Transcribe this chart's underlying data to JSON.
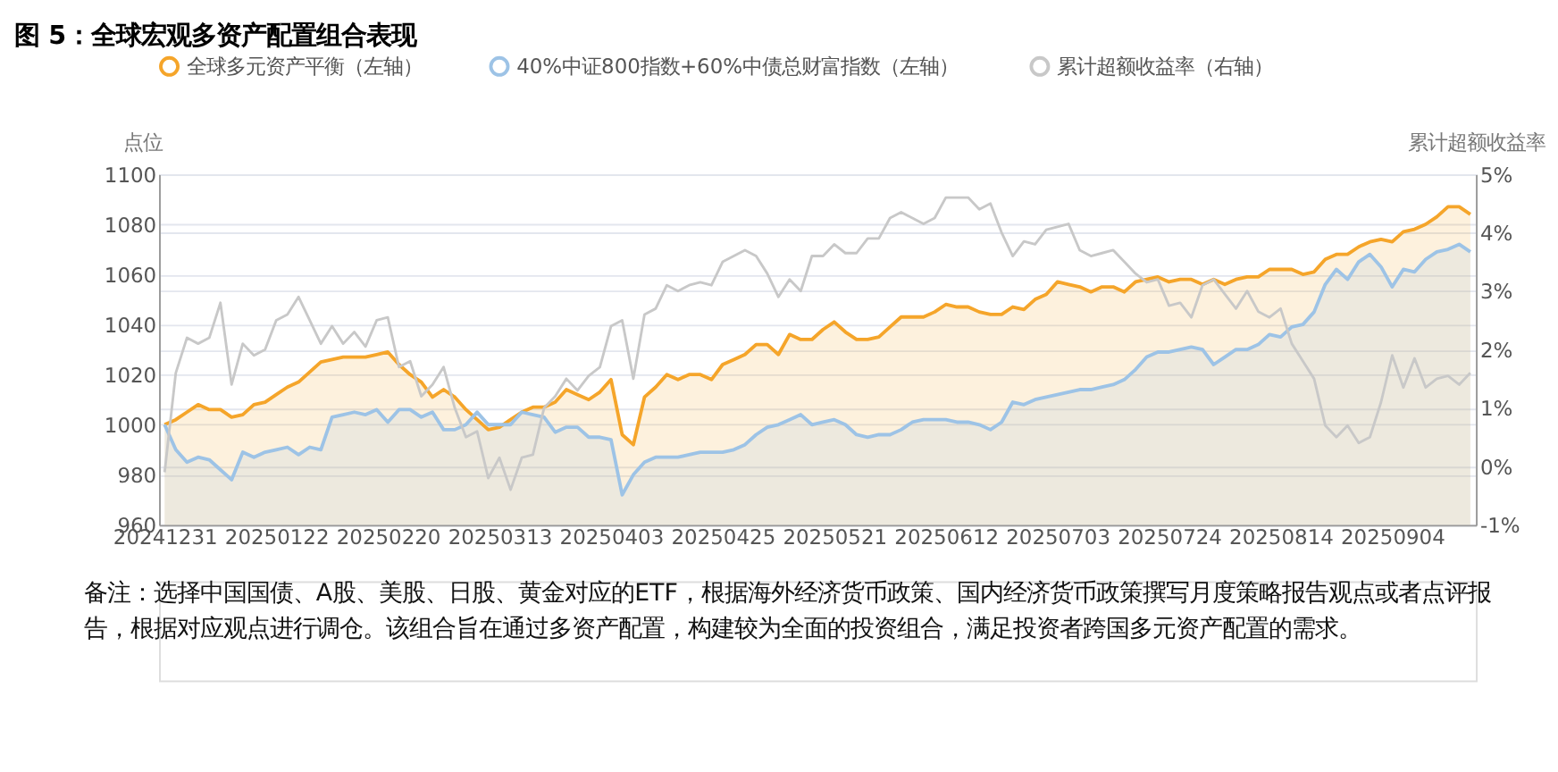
{
  "chart_data": {
    "type": "area",
    "title": "图 5：全球宏观多资产配置组合表现",
    "ylabel": "点位",
    "y2label": "累计超额收益率",
    "categories": [
      "20241231",
      null,
      null,
      null,
      null,
      null,
      null,
      null,
      null,
      null,
      "20250122",
      null,
      null,
      null,
      null,
      null,
      null,
      null,
      null,
      null,
      "20250220",
      null,
      null,
      null,
      null,
      null,
      null,
      null,
      null,
      null,
      "20250313",
      null,
      null,
      null,
      null,
      null,
      null,
      null,
      null,
      null,
      "20250403",
      null,
      null,
      null,
      null,
      null,
      null,
      null,
      null,
      null,
      "20250425",
      null,
      null,
      null,
      null,
      null,
      null,
      null,
      null,
      null,
      "20250521",
      null,
      null,
      null,
      null,
      null,
      null,
      null,
      null,
      null,
      "20250612",
      null,
      null,
      null,
      null,
      null,
      null,
      null,
      null,
      null,
      "20250703",
      null,
      null,
      null,
      null,
      null,
      null,
      null,
      null,
      null,
      "20250724",
      null,
      null,
      null,
      null,
      null,
      null,
      null,
      null,
      null,
      "20250814",
      null,
      null,
      null,
      null,
      null,
      null,
      null,
      null,
      null,
      "20250904",
      null,
      null,
      null,
      null,
      null,
      null,
      null
    ],
    "series": [
      {
        "name": "全球多元资产平衡（左轴）",
        "color": "#f5a52a",
        "values": [
          1000,
          1002,
          1005,
          1008,
          1006,
          1006,
          1003,
          1004,
          1008,
          1009,
          1012,
          1015,
          1017,
          1021,
          1025,
          1026,
          1027,
          1027,
          1027,
          1028,
          1029,
          1024,
          1020,
          1017,
          1011,
          1014,
          1011,
          1006,
          1002,
          998,
          999,
          1002,
          1005,
          1007,
          1007,
          1009,
          1014,
          1012,
          1010,
          1013,
          1018,
          996,
          992,
          1011,
          1015,
          1020,
          1018,
          1020,
          1020,
          1018,
          1024,
          1026,
          1028,
          1032,
          1032,
          1028,
          1036,
          1034,
          1034,
          1038,
          1041,
          1037,
          1034,
          1034,
          1035,
          1039,
          1043,
          1043,
          1043,
          1045,
          1048,
          1047,
          1047,
          1045,
          1044,
          1044,
          1047,
          1046,
          1050,
          1052,
          1057,
          1056,
          1055,
          1053,
          1055,
          1055,
          1053,
          1057,
          1058,
          1059,
          1057,
          1058,
          1058,
          1056,
          1058,
          1056,
          1058,
          1059,
          1059,
          1062,
          1062,
          1062,
          1060,
          1061,
          1066,
          1068,
          1068,
          1071,
          1073,
          1074,
          1073,
          1077,
          1078,
          1080,
          1083,
          1087,
          1087,
          1084
        ]
      },
      {
        "name": "40%中证800指数+60%中债总财富指数（左轴）",
        "color": "#9dc3e6",
        "values": [
          1000,
          990,
          985,
          987,
          986,
          982,
          978,
          989,
          987,
          989,
          990,
          991,
          988,
          991,
          990,
          1003,
          1004,
          1005,
          1004,
          1006,
          1001,
          1006,
          1006,
          1003,
          1005,
          998,
          998,
          1000,
          1005,
          1000,
          1000,
          1000,
          1005,
          1004,
          1003,
          997,
          999,
          999,
          995,
          995,
          994,
          972,
          980,
          985,
          987,
          987,
          987,
          988,
          989,
          989,
          989,
          990,
          992,
          996,
          999,
          1000,
          1002,
          1004,
          1000,
          1001,
          1002,
          1000,
          996,
          995,
          996,
          996,
          998,
          1001,
          1002,
          1002,
          1002,
          1001,
          1001,
          1000,
          998,
          1001,
          1009,
          1008,
          1010,
          1011,
          1012,
          1013,
          1014,
          1014,
          1015,
          1016,
          1018,
          1022,
          1027,
          1029,
          1029,
          1030,
          1031,
          1030,
          1024,
          1027,
          1030,
          1030,
          1032,
          1036,
          1035,
          1039,
          1040,
          1045,
          1056,
          1062,
          1058,
          1065,
          1068,
          1063,
          1055,
          1062,
          1061,
          1066,
          1069,
          1070,
          1072,
          1069
        ]
      },
      {
        "name": "累计超额收益率（右轴）",
        "type": "line",
        "axis": "y2",
        "color": "#c8c8c8",
        "values": [
          -0.1,
          1.6,
          2.2,
          2.1,
          2.2,
          2.8,
          1.4,
          2.1,
          1.9,
          2.0,
          2.5,
          2.6,
          2.9,
          2.5,
          2.1,
          2.4,
          2.1,
          2.3,
          2.05,
          2.5,
          2.55,
          1.7,
          1.8,
          1.2,
          1.4,
          1.7,
          1.0,
          0.5,
          0.6,
          -0.2,
          0.15,
          -0.4,
          0.15,
          0.2,
          1.0,
          1.2,
          1.5,
          1.3,
          1.55,
          1.7,
          2.4,
          2.5,
          1.5,
          2.6,
          2.7,
          3.1,
          3.0,
          3.1,
          3.15,
          3.1,
          3.5,
          3.6,
          3.7,
          3.6,
          3.3,
          2.9,
          3.2,
          3.0,
          3.6,
          3.6,
          3.8,
          3.65,
          3.65,
          3.9,
          3.9,
          4.25,
          4.35,
          4.25,
          4.15,
          4.25,
          4.6,
          4.6,
          4.6,
          4.4,
          4.5,
          4.0,
          3.6,
          3.85,
          3.8,
          4.05,
          4.1,
          4.15,
          3.7,
          3.6,
          3.65,
          3.7,
          3.5,
          3.3,
          3.15,
          3.2,
          2.75,
          2.8,
          2.55,
          3.1,
          3.2,
          2.95,
          2.7,
          3.0,
          2.65,
          2.55,
          2.7,
          2.1,
          1.8,
          1.5,
          0.7,
          0.5,
          0.7,
          0.4,
          0.5,
          1.1,
          1.9,
          1.35,
          1.85,
          1.35,
          1.5,
          1.55,
          1.4,
          1.6
        ]
      }
    ],
    "ylim": [
      960,
      1100
    ],
    "yticks": [
      960,
      980,
      1000,
      1020,
      1040,
      1060,
      1080,
      1100
    ],
    "y2lim": [
      -1,
      5
    ],
    "y2ticks": [
      {
        "value": -1,
        "label": "-1%"
      },
      {
        "value": 0,
        "label": "0%"
      },
      {
        "value": 1,
        "label": "1%"
      },
      {
        "value": 2,
        "label": "2%"
      },
      {
        "value": 3,
        "label": "3%"
      },
      {
        "value": 4,
        "label": "4%"
      },
      {
        "value": 5,
        "label": "5%"
      }
    ],
    "grid": "y",
    "legend": "top",
    "marker": "none",
    "line_style": "solid",
    "annotations": [
      "备注：选择中国国债、A股、美股、日股、黄金对应的ETF，根据海外经济货币政策、国内经济货币政策撰写月度策略报告观点或者点评报告，根据对应观点进行调仓。该组合旨在通过多资产配置，构建较为全面的投资组合，满足投资者跨国多元资产配置的需求。"
    ]
  }
}
